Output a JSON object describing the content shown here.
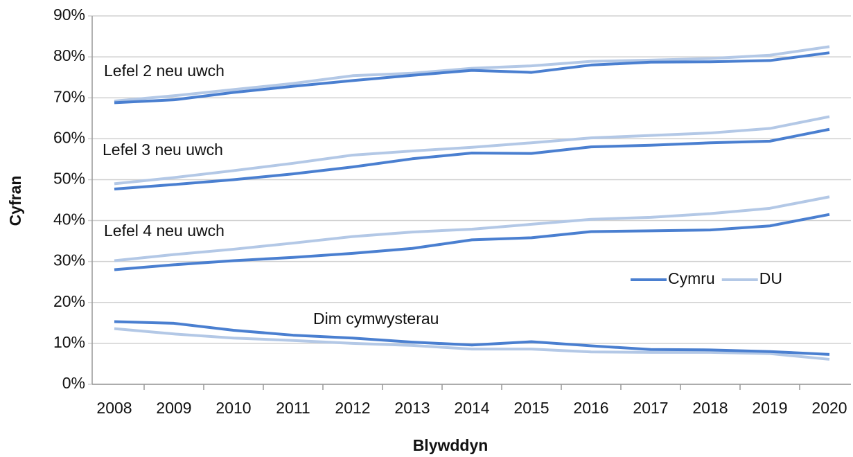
{
  "chart_data": {
    "type": "line",
    "ylabel": "Cyfran",
    "xlabel": "Blywddyn",
    "categories": [
      "2008",
      "2009",
      "2010",
      "2011",
      "2012",
      "2013",
      "2014",
      "2015",
      "2016",
      "2017",
      "2018",
      "2019",
      "2020"
    ],
    "ylim": [
      0,
      90
    ],
    "yticks": [
      {
        "value": 0,
        "label": "0%"
      },
      {
        "value": 10,
        "label": "10%"
      },
      {
        "value": 20,
        "label": "20%"
      },
      {
        "value": 30,
        "label": "30%"
      },
      {
        "value": 40,
        "label": "40%"
      },
      {
        "value": 50,
        "label": "50%"
      },
      {
        "value": 60,
        "label": "60%"
      },
      {
        "value": 70,
        "label": "70%"
      },
      {
        "value": 80,
        "label": "80%"
      },
      {
        "value": 90,
        "label": "90%"
      }
    ],
    "grid": true,
    "legend": "right",
    "groups": [
      {
        "label": "Lefel 2 neu uwch",
        "series": [
          {
            "name": "Cymru",
            "color": "#4a7fd0",
            "values": [
              68.8,
              69.5,
              71.3,
              72.8,
              74.2,
              75.5,
              76.7,
              76.2,
              78,
              78.7,
              78.8,
              79.1,
              81
            ]
          },
          {
            "name": "DU",
            "color": "#b3c8e6",
            "values": [
              69.2,
              70.5,
              72,
              73.5,
              75.4,
              76,
              77.2,
              77.8,
              78.9,
              79.2,
              79.6,
              80.4,
              82.5
            ]
          }
        ]
      },
      {
        "label": "Lefel 3 neu uwch",
        "series": [
          {
            "name": "Cymru",
            "color": "#4a7fd0",
            "values": [
              47.7,
              48.8,
              50,
              51.4,
              53.1,
              55.1,
              56.5,
              56.4,
              58,
              58.4,
              59,
              59.4,
              62.3
            ]
          },
          {
            "name": "DU",
            "color": "#b3c8e6",
            "values": [
              49,
              50.5,
              52.2,
              54,
              56,
              57,
              57.9,
              59,
              60.2,
              60.8,
              61.4,
              62.5,
              65.4
            ]
          }
        ]
      },
      {
        "label": "Lefel 4 neu uwch",
        "series": [
          {
            "name": "Cymru",
            "color": "#4a7fd0",
            "values": [
              28,
              29.2,
              30.2,
              31,
              32,
              33.2,
              35.3,
              35.8,
              37.3,
              37.5,
              37.7,
              38.7,
              41.5
            ]
          },
          {
            "name": "DU",
            "color": "#b3c8e6",
            "values": [
              30.2,
              31.7,
              33,
              34.5,
              36.1,
              37.2,
              37.9,
              39.1,
              40.3,
              40.8,
              41.7,
              43,
              45.8
            ]
          }
        ]
      },
      {
        "label": "Dim cymwysterau",
        "series": [
          {
            "name": "Cymru",
            "color": "#4a7fd0",
            "values": [
              15.3,
              14.9,
              13.2,
              12,
              11.3,
              10.3,
              9.6,
              10.4,
              9.4,
              8.5,
              8.4,
              8,
              7.3
            ]
          },
          {
            "name": "DU",
            "color": "#b3c8e6",
            "values": [
              13.6,
              12.3,
              11.3,
              10.7,
              10,
              9.5,
              8.6,
              8.6,
              7.9,
              7.8,
              7.8,
              7.5,
              6.1
            ]
          }
        ]
      }
    ]
  }
}
